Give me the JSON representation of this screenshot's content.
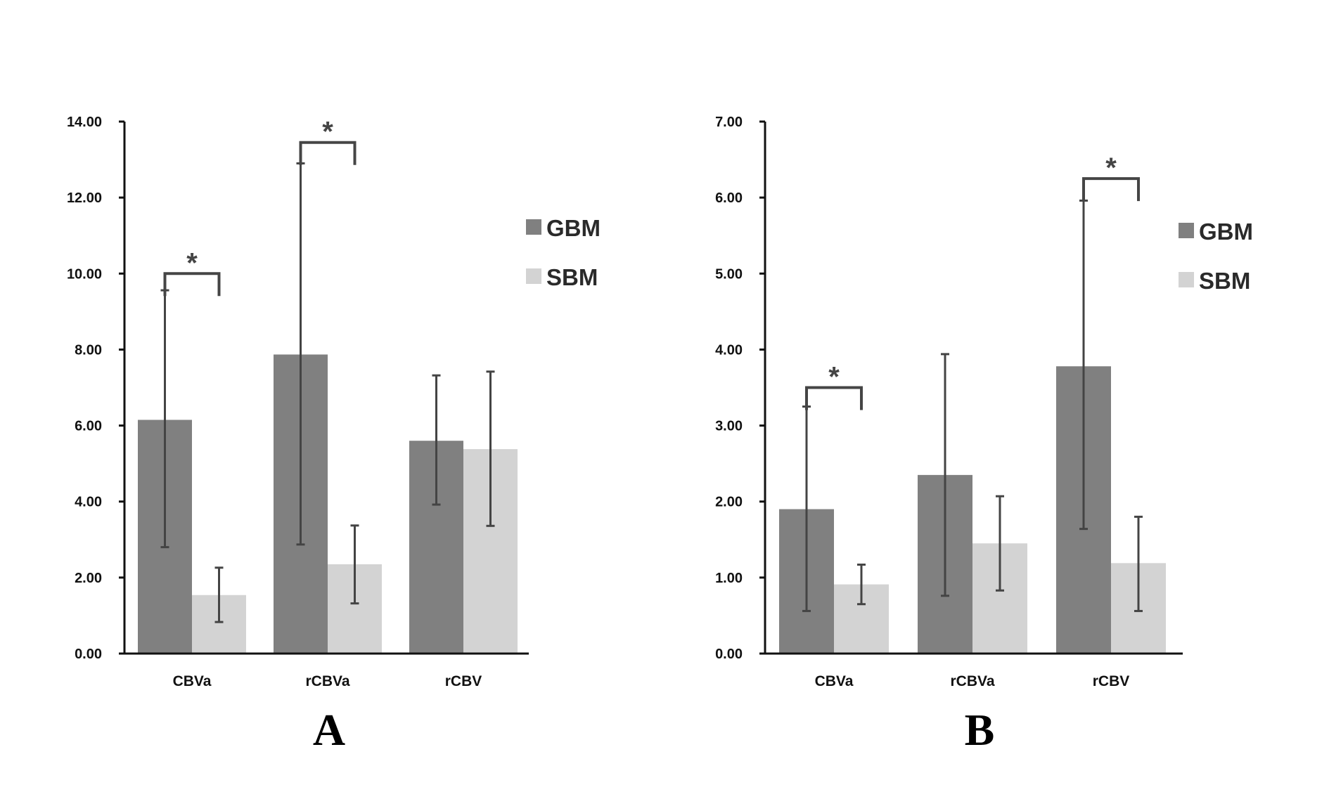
{
  "figure": {
    "colors": {
      "GBM": "#808080",
      "SBM": "#d3d3d3",
      "errorbar": "#444444",
      "axis": "#111111",
      "bracket": "#454545"
    }
  },
  "chart_data": [
    {
      "type": "bar",
      "panel": "A",
      "categories": [
        "CBVa",
        "rCBVa",
        "rCBV"
      ],
      "series": [
        {
          "name": "GBM",
          "values": [
            6.15,
            7.87,
            5.6
          ],
          "error_low": [
            2.8,
            2.87,
            3.92
          ],
          "error_high": [
            9.56,
            12.9,
            7.32
          ]
        },
        {
          "name": "SBM",
          "values": [
            1.54,
            2.35,
            5.38
          ],
          "error_low": [
            0.83,
            1.32,
            3.36
          ],
          "error_high": [
            2.26,
            3.37,
            7.42
          ]
        }
      ],
      "ylim": [
        0,
        14
      ],
      "yticks": [
        0,
        2,
        4,
        6,
        8,
        10,
        12,
        14
      ],
      "ytick_labels": [
        "0.00",
        "2.00",
        "4.00",
        "6.00",
        "8.00",
        "10.00",
        "12.00",
        "14.00"
      ],
      "legend": [
        "GBM",
        "SBM"
      ],
      "legend_position": "right",
      "significance": [
        {
          "category": "CBVa",
          "label": "*",
          "level": 10.0
        },
        {
          "category": "rCBVa",
          "label": "*",
          "level": 13.45
        }
      ],
      "title": "",
      "xlabel": "",
      "ylabel": ""
    },
    {
      "type": "bar",
      "panel": "B",
      "categories": [
        "CBVa",
        "rCBVa",
        "rCBV"
      ],
      "series": [
        {
          "name": "GBM",
          "values": [
            1.9,
            2.35,
            3.78
          ],
          "error_low": [
            0.56,
            0.76,
            1.64
          ],
          "error_high": [
            3.25,
            3.94,
            5.96
          ]
        },
        {
          "name": "SBM",
          "values": [
            0.91,
            1.45,
            1.19
          ],
          "error_low": [
            0.65,
            0.83,
            0.56
          ],
          "error_high": [
            1.17,
            2.07,
            1.8
          ]
        }
      ],
      "ylim": [
        0,
        7
      ],
      "yticks": [
        0,
        1,
        2,
        3,
        4,
        5,
        6,
        7
      ],
      "ytick_labels": [
        "0.00",
        "1.00",
        "2.00",
        "3.00",
        "4.00",
        "5.00",
        "6.00",
        "7.00"
      ],
      "legend": [
        "GBM",
        "SBM"
      ],
      "legend_position": "right",
      "significance": [
        {
          "category": "CBVa",
          "label": "*",
          "level": 3.5
        },
        {
          "category": "rCBV",
          "label": "*",
          "level": 6.25
        }
      ],
      "title": "",
      "xlabel": "",
      "ylabel": ""
    }
  ]
}
